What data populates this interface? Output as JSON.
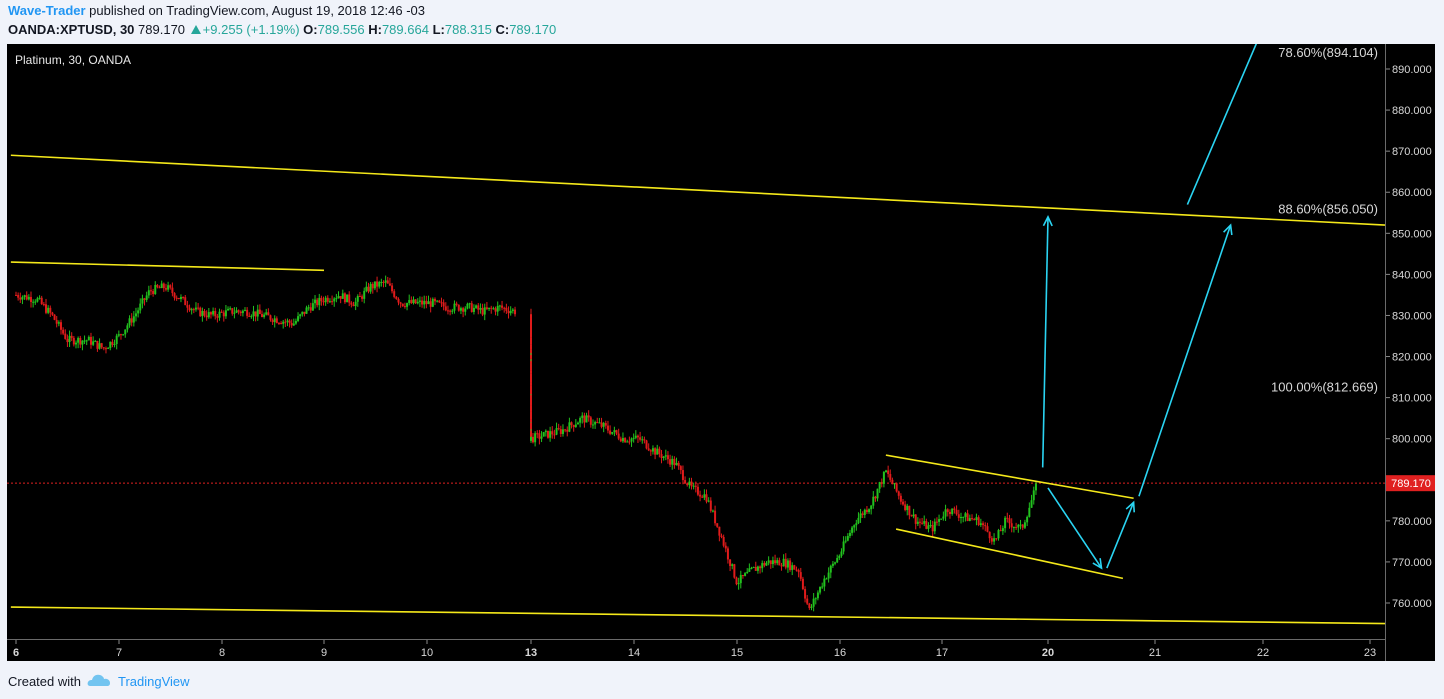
{
  "header": {
    "author": "Wave-Trader",
    "published_text": " published on TradingView.com, August 19, 2018 12:46 -03",
    "symbol": "OANDA:XPTUSD, 30",
    "last": "789.170",
    "change": "+9.255 (+1.19%)",
    "o_label": "O:",
    "o_value": "789.556",
    "h_label": "H:",
    "h_value": "789.664",
    "l_label": "L:",
    "l_value": "788.315",
    "c_label": "C:",
    "c_value": "789.170"
  },
  "footer": {
    "created_with": "Created with",
    "brand": "TradingView"
  },
  "colors": {
    "background": "#000000",
    "up": "#22c21e",
    "down": "#e01b1b",
    "trendline": "#f4e81a",
    "arrow": "#2ad4f2",
    "price_line": "#e02020",
    "axis_text": "#d8d8d8"
  },
  "chart_data": {
    "type": "candlestick",
    "title": "Platinum, 30, OANDA",
    "x_ticks": [
      {
        "label": "6",
        "day": 6,
        "bold": true
      },
      {
        "label": "7",
        "day": 7
      },
      {
        "label": "8",
        "day": 8
      },
      {
        "label": "9",
        "day": 9
      },
      {
        "label": "10",
        "day": 10
      },
      {
        "label": "13",
        "day": 13,
        "bold": true
      },
      {
        "label": "14",
        "day": 14
      },
      {
        "label": "15",
        "day": 15
      },
      {
        "label": "16",
        "day": 16
      },
      {
        "label": "17",
        "day": 17
      },
      {
        "label": "20",
        "day": 20,
        "bold": true
      },
      {
        "label": "21",
        "day": 21
      },
      {
        "label": "22",
        "day": 22
      },
      {
        "label": "23",
        "day": 23
      }
    ],
    "y_ticks": [
      "890.000",
      "880.000",
      "870.000",
      "860.000",
      "850.000",
      "840.000",
      "830.000",
      "820.000",
      "810.000",
      "800.000",
      "780.000",
      "770.000",
      "760.000"
    ],
    "ylim": [
      754,
      898
    ],
    "last_price": "789.170",
    "last_price_value": 789.17,
    "fib_labels": [
      {
        "text": "78.60%(894.104)",
        "price": 894.104
      },
      {
        "text": "88.60%(856.050)",
        "price": 856.05
      },
      {
        "text": "100.00%(812.669)",
        "price": 812.669
      }
    ],
    "price_path": [
      [
        6.0,
        835
      ],
      [
        6.2,
        834
      ],
      [
        6.35,
        830
      ],
      [
        6.5,
        824
      ],
      [
        6.7,
        824
      ],
      [
        6.85,
        822
      ],
      [
        7.0,
        825
      ],
      [
        7.15,
        830
      ],
      [
        7.3,
        836
      ],
      [
        7.45,
        837
      ],
      [
        7.6,
        834
      ],
      [
        7.75,
        831
      ],
      [
        7.9,
        830
      ],
      [
        8.1,
        831
      ],
      [
        8.25,
        831
      ],
      [
        8.4,
        830
      ],
      [
        8.55,
        829
      ],
      [
        8.7,
        828
      ],
      [
        8.85,
        832
      ],
      [
        9.0,
        834
      ],
      [
        9.15,
        835
      ],
      [
        9.3,
        833
      ],
      [
        9.45,
        837
      ],
      [
        9.6,
        838
      ],
      [
        9.75,
        833
      ],
      [
        9.9,
        833
      ],
      [
        10.05,
        833
      ],
      [
        10.2,
        832
      ],
      [
        10.4,
        832
      ],
      [
        10.55,
        831
      ],
      [
        10.7,
        832
      ],
      [
        10.85,
        831
      ],
      [
        12.0,
        830
      ],
      [
        12.15,
        824
      ],
      [
        12.35,
        818
      ],
      [
        12.5,
        818
      ],
      [
        12.65,
        812
      ],
      [
        12.8,
        802
      ],
      [
        13.0,
        800
      ],
      [
        13.15,
        801
      ],
      [
        13.3,
        802
      ],
      [
        13.5,
        805
      ],
      [
        13.7,
        803
      ],
      [
        13.9,
        800
      ],
      [
        14.05,
        800
      ],
      [
        14.2,
        797
      ],
      [
        14.4,
        794
      ],
      [
        14.55,
        788
      ],
      [
        14.7,
        786
      ],
      [
        14.85,
        776
      ],
      [
        15.0,
        765
      ],
      [
        15.15,
        768
      ],
      [
        15.3,
        770
      ],
      [
        15.45,
        770
      ],
      [
        15.6,
        768
      ],
      [
        15.7,
        758
      ],
      [
        15.85,
        766
      ],
      [
        16.0,
        772
      ],
      [
        16.15,
        780
      ],
      [
        16.3,
        784
      ],
      [
        16.45,
        792
      ],
      [
        16.6,
        785
      ],
      [
        16.75,
        780
      ],
      [
        16.9,
        778
      ],
      [
        17.05,
        783
      ],
      [
        17.2,
        781
      ],
      [
        17.35,
        780
      ],
      [
        17.5,
        775
      ],
      [
        17.6,
        780
      ],
      [
        17.75,
        778
      ],
      [
        17.9,
        789
      ]
    ],
    "trendlines": [
      {
        "p1": [
          5.95,
          869
        ],
        "p2": [
          23.4,
          852
        ]
      },
      {
        "p1": [
          5.95,
          843
        ],
        "p2": [
          9.0,
          841
        ]
      },
      {
        "p1": [
          5.95,
          759
        ],
        "p2": [
          23.4,
          755
        ]
      },
      {
        "p1": [
          16.45,
          796
        ],
        "p2": [
          20.8,
          785.5
        ]
      },
      {
        "p1": [
          16.55,
          778
        ],
        "p2": [
          20.7,
          766
        ]
      }
    ],
    "arrows": [
      {
        "from": [
          17.95,
          793
        ],
        "to": [
          19.6,
          854
        ]
      },
      {
        "from": [
          18.0,
          788
        ],
        "to": [
          20.5,
          768.5
        ]
      },
      {
        "from": [
          20.55,
          768.5
        ],
        "to": [
          20.8,
          784.5
        ]
      },
      {
        "from": [
          20.85,
          786
        ],
        "to": [
          21.7,
          852
        ]
      },
      {
        "from": [
          21.3,
          857
        ],
        "to": [
          22.05,
          903
        ]
      }
    ]
  }
}
